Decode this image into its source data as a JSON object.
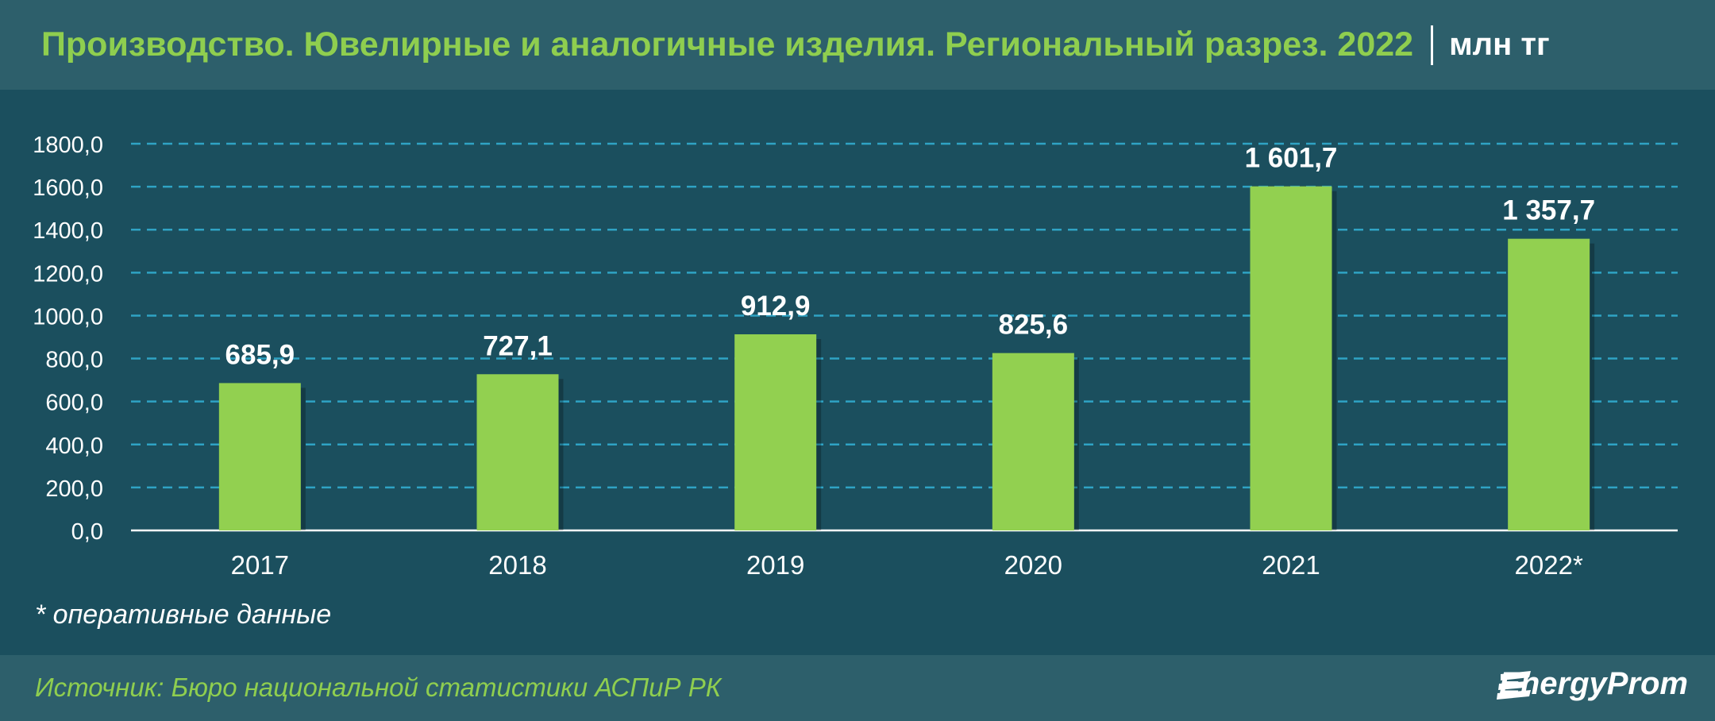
{
  "header": {
    "title": "Производство. Ювелирные и аналогичные изделия. Региональный разрез. 2022",
    "unit": "млн тг"
  },
  "footnote": "* оперативные данные",
  "footer": {
    "source": "Источник: Бюро национальной статистики АСПиР РК",
    "logo_text": "EnergyProm"
  },
  "colors": {
    "bar": "#92d050",
    "background": "#1b4f5e",
    "band": "#2d5f6b",
    "title": "#8fce4f",
    "grid": "#2fa3c4"
  },
  "chart_data": {
    "type": "bar",
    "categories": [
      "2017",
      "2018",
      "2019",
      "2020",
      "2021",
      "2022*"
    ],
    "values": [
      685.9,
      727.1,
      912.9,
      825.6,
      1601.7,
      1357.7
    ],
    "data_labels": [
      "685,9",
      "727,1",
      "912,9",
      "825,6",
      "1 601,7",
      "1 357,7"
    ],
    "ylim": [
      0,
      1800
    ],
    "yticks": [
      0,
      200,
      400,
      600,
      800,
      1000,
      1200,
      1400,
      1600,
      1800
    ],
    "ytick_labels": [
      "0,0",
      "200,0",
      "400,0",
      "600,0",
      "800,0",
      "1000,0",
      "1200,0",
      "1400,0",
      "1600,0",
      "1800,0"
    ],
    "grid": true,
    "grid_style": "dashed"
  }
}
